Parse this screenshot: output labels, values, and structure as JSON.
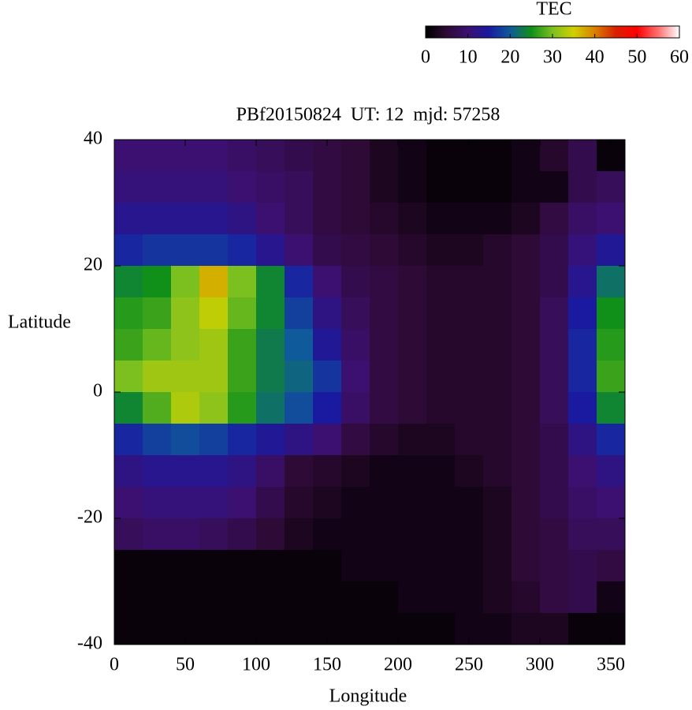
{
  "chart_data": {
    "type": "heatmap",
    "title": "PBf20150824  UT: 12  mjd: 57258",
    "xlabel": "Longitude",
    "ylabel": "Latitude",
    "xlim": [
      0,
      360
    ],
    "ylim": [
      -40,
      40
    ],
    "xticks": [
      0,
      50,
      100,
      150,
      200,
      250,
      300,
      350
    ],
    "yticks": [
      -40,
      -20,
      0,
      20,
      40
    ],
    "x": [
      10,
      30,
      50,
      70,
      90,
      110,
      130,
      150,
      170,
      190,
      210,
      230,
      250,
      270,
      290,
      310,
      330,
      350
    ],
    "y": [
      37.5,
      32.5,
      27.5,
      22.5,
      17.5,
      12.5,
      7.5,
      2.5,
      -2.5,
      -7.5,
      -12.5,
      -17.5,
      -22.5,
      -27.5,
      -32.5,
      -37.5
    ],
    "z": [
      [
        10,
        10,
        10,
        10,
        9,
        8,
        7,
        6,
        5,
        3,
        2,
        1,
        1,
        1,
        2,
        4,
        7,
        1
      ],
      [
        11,
        11,
        11,
        11,
        10,
        9,
        8,
        6,
        5,
        3,
        2,
        1,
        1,
        1,
        2,
        2,
        7,
        8
      ],
      [
        13,
        13,
        13,
        13,
        12,
        10,
        8,
        6,
        5,
        4,
        3,
        2,
        2,
        2,
        3,
        6,
        9,
        10
      ],
      [
        16,
        17,
        17,
        17,
        16,
        13,
        10,
        7,
        6,
        5,
        4,
        3,
        3,
        4,
        5,
        7,
        11,
        14
      ],
      [
        24,
        25,
        30,
        37,
        30,
        24,
        16,
        10,
        7,
        6,
        5,
        4,
        4,
        4,
        5,
        7,
        13,
        22
      ],
      [
        26,
        27,
        31,
        34,
        29,
        24,
        18,
        12,
        8,
        6,
        5,
        4,
        4,
        4,
        5,
        8,
        15,
        25
      ],
      [
        27,
        29,
        31,
        32,
        27,
        23,
        20,
        14,
        9,
        6,
        5,
        4,
        4,
        4,
        5,
        8,
        16,
        26
      ],
      [
        30,
        32,
        32,
        32,
        27,
        23,
        21,
        17,
        10,
        6,
        5,
        4,
        4,
        4,
        5,
        8,
        16,
        27
      ],
      [
        24,
        28,
        33,
        31,
        26,
        22,
        19,
        15,
        9,
        6,
        5,
        4,
        4,
        4,
        5,
        8,
        15,
        24
      ],
      [
        16,
        18,
        19,
        18,
        16,
        14,
        12,
        10,
        6,
        4,
        3,
        3,
        4,
        4,
        5,
        7,
        12,
        16
      ],
      [
        12,
        13,
        13,
        13,
        12,
        9,
        5,
        4,
        3,
        2,
        2,
        2,
        3,
        4,
        5,
        7,
        10,
        12
      ],
      [
        10,
        11,
        11,
        11,
        10,
        7,
        4,
        3,
        2,
        2,
        2,
        2,
        2,
        3,
        5,
        7,
        9,
        10
      ],
      [
        8,
        9,
        9,
        8,
        7,
        5,
        3,
        2,
        2,
        2,
        2,
        2,
        2,
        3,
        5,
        6,
        8,
        8
      ],
      [
        1,
        1,
        1,
        1,
        1,
        1,
        1,
        1,
        2,
        2,
        2,
        2,
        2,
        3,
        5,
        6,
        7,
        6
      ],
      [
        1,
        1,
        1,
        1,
        1,
        1,
        1,
        1,
        1,
        1,
        2,
        2,
        2,
        3,
        4,
        6,
        7,
        2
      ],
      [
        1,
        1,
        1,
        1,
        1,
        1,
        1,
        1,
        1,
        1,
        1,
        1,
        2,
        2,
        3,
        3,
        1,
        1
      ]
    ],
    "colorbar": {
      "title": "TEC",
      "lim": [
        0,
        60
      ],
      "ticks": [
        0,
        10,
        20,
        30,
        40,
        50,
        60
      ]
    },
    "colorscale": [
      "#000000",
      "#2e0a36",
      "#3b1070",
      "#1a1aa0",
      "#0f5a9a",
      "#109018",
      "#7cc020",
      "#d0d000",
      "#d88000",
      "#d82000",
      "#ff0000",
      "#ff7070",
      "#ffffff"
    ]
  }
}
